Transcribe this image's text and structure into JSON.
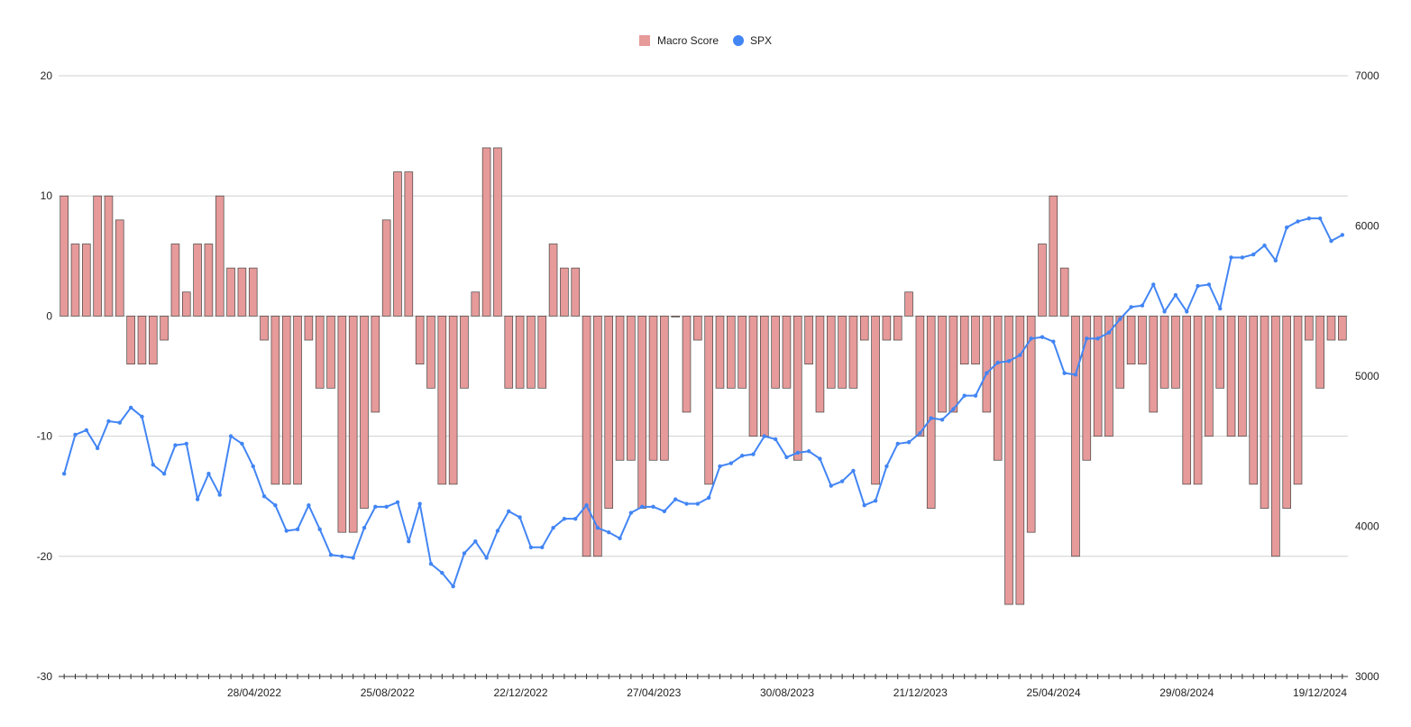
{
  "chart_data": {
    "type": "bar",
    "title": "",
    "legend": {
      "placement": "top-center",
      "entries": [
        {
          "label": "Macro Score",
          "color": "#e69a99"
        },
        {
          "label": "SPX",
          "color": "#4285f4"
        }
      ]
    },
    "x_tick_labels": [
      "28/04/2022",
      "25/08/2022",
      "22/12/2022",
      "27/04/2023",
      "30/08/2023",
      "21/12/2023",
      "25/04/2024",
      "29/08/2024",
      "19/12/2024"
    ],
    "y_left": {
      "min": -30,
      "max": 20,
      "ticks": [
        "20",
        "10",
        "0",
        "-10",
        "-20",
        "-30"
      ]
    },
    "y_right": {
      "min": 3000,
      "max": 7000,
      "ticks": [
        "7000",
        "6000",
        "5000",
        "4000",
        "3000"
      ]
    },
    "grid": true,
    "series": [
      {
        "name": "Macro Score",
        "type": "bar",
        "axis": "left",
        "color": "#e69a99",
        "values": [
          10,
          6,
          6,
          10,
          10,
          8,
          -4,
          -4,
          -4,
          -2,
          6,
          2,
          6,
          6,
          10,
          4,
          4,
          4,
          -2,
          -14,
          -14,
          -14,
          -2,
          -6,
          -6,
          -18,
          -18,
          -16,
          -8,
          8,
          12,
          12,
          -4,
          -6,
          -14,
          -14,
          -6,
          2,
          14,
          14,
          -6,
          -6,
          -6,
          -6,
          6,
          4,
          4,
          -20,
          -20,
          -16,
          -12,
          -12,
          -16,
          -12,
          -12,
          0,
          -8,
          -2,
          -14,
          -6,
          -6,
          -6,
          -10,
          -10,
          -6,
          -6,
          -12,
          -4,
          -8,
          -6,
          -6,
          -6,
          -2,
          -14,
          -2,
          -2,
          2,
          -10,
          -16,
          -8,
          -8,
          -4,
          -4,
          -8,
          -12,
          -24,
          -24,
          -18,
          6,
          10,
          4,
          -20,
          -12,
          -10,
          -10,
          -6,
          -4,
          -4,
          -8,
          -6,
          -6,
          -14,
          -14,
          -10,
          -6,
          -10,
          -10,
          -14,
          -16,
          -20,
          -16,
          -14,
          -2,
          -6,
          -2,
          -2
        ]
      },
      {
        "name": "SPX",
        "type": "line",
        "axis": "right",
        "color": "#4285f4",
        "values": [
          4350,
          4610,
          4640,
          4520,
          4700,
          4690,
          4790,
          4730,
          4410,
          4350,
          4540,
          4550,
          4180,
          4350,
          4210,
          4600,
          4550,
          4400,
          4200,
          4140,
          3970,
          3980,
          4140,
          3980,
          3810,
          3800,
          3790,
          3990,
          4130,
          4130,
          4160,
          3900,
          4150,
          3750,
          3690,
          3600,
          3820,
          3900,
          3790,
          3970,
          4100,
          4060,
          3860,
          3860,
          3990,
          4050,
          4050,
          4140,
          3990,
          3960,
          3920,
          4090,
          4130,
          4130,
          4100,
          4180,
          4150,
          4150,
          4190,
          4400,
          4420,
          4470,
          4480,
          4600,
          4580,
          4460,
          4490,
          4500,
          4450,
          4270,
          4300,
          4370,
          4140,
          4170,
          4400,
          4550,
          4560,
          4620,
          4720,
          4710,
          4780,
          4870,
          4870,
          5020,
          5090,
          5100,
          5140,
          5250,
          5260,
          5230,
          5020,
          5010,
          5250,
          5250,
          5290,
          5380,
          5460,
          5470,
          5610,
          5430,
          5540,
          5430,
          5600,
          5610,
          5450,
          5790,
          5790,
          5810,
          5870,
          5770,
          5990,
          6030,
          6050,
          6050,
          5900,
          5940
        ]
      }
    ]
  }
}
